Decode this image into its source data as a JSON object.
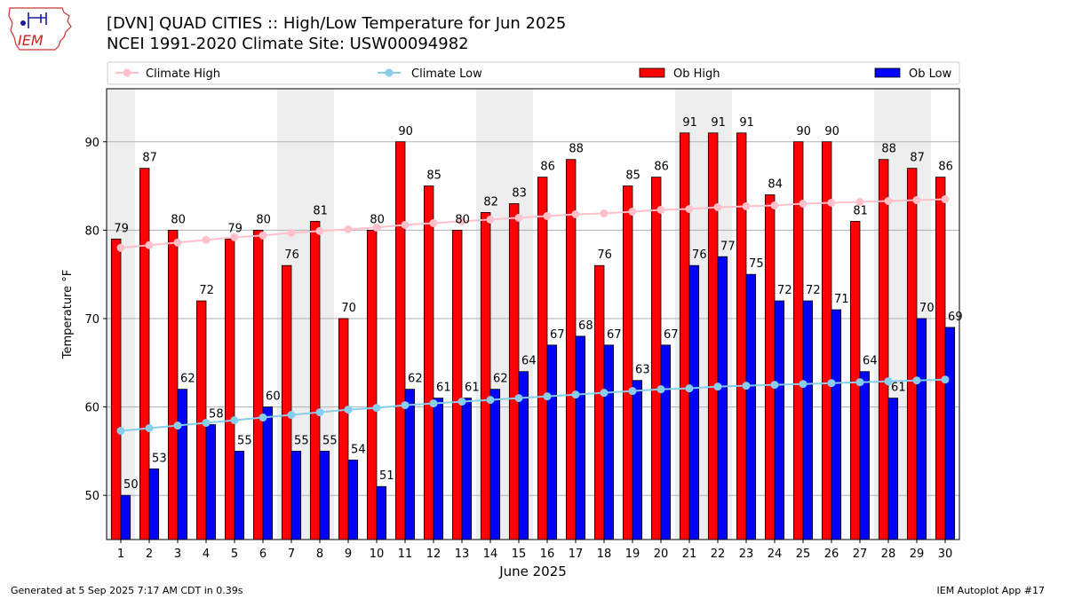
{
  "header": {
    "logo_text": "IEM",
    "title_line1": "[DVN] QUAD CITIES :: High/Low Temperature for Jun 2025",
    "title_line2": "NCEI 1991-2020 Climate Site: USW00094982"
  },
  "footer": {
    "generated": "Generated at 5 Sep 2025 7:17 AM CDT in 0.39s",
    "app": "IEM Autoplot App #17"
  },
  "colors": {
    "climate_high": "#ffc0cb",
    "climate_low": "#87ceeb",
    "ob_high": "#ff0000",
    "ob_low": "#0000ff",
    "weekend_shade": "#eeeeee",
    "grid": "#b0b0b0"
  },
  "chart_data": {
    "type": "bar",
    "title": "[DVN] QUAD CITIES :: High/Low Temperature for Jun 2025",
    "subtitle": "NCEI 1991-2020 Climate Site: USW00094982",
    "xlabel": "June 2025",
    "ylabel": "Temperature °F",
    "ylim": [
      45,
      96
    ],
    "yticks": [
      50,
      60,
      70,
      80,
      90
    ],
    "grid": "y",
    "legend_placement": "top",
    "legend": [
      "Climate High",
      "Climate Low",
      "Ob High",
      "Ob Low"
    ],
    "categories": [
      "1",
      "2",
      "3",
      "4",
      "5",
      "6",
      "7",
      "8",
      "9",
      "10",
      "11",
      "12",
      "13",
      "14",
      "15",
      "16",
      "17",
      "18",
      "19",
      "20",
      "21",
      "22",
      "23",
      "24",
      "25",
      "26",
      "27",
      "28",
      "29",
      "30"
    ],
    "shaded_days": [
      "1",
      "7",
      "8",
      "14",
      "15",
      "21",
      "22",
      "28",
      "29"
    ],
    "series": [
      {
        "name": "Ob High",
        "kind": "bar",
        "values": [
          79,
          87,
          80,
          72,
          79,
          80,
          76,
          81,
          70,
          80,
          90,
          85,
          80,
          82,
          83,
          86,
          88,
          76,
          85,
          86,
          91,
          91,
          91,
          84,
          90,
          90,
          81,
          88,
          87,
          86
        ]
      },
      {
        "name": "Ob Low",
        "kind": "bar",
        "values": [
          50,
          53,
          62,
          58,
          55,
          60,
          55,
          55,
          54,
          51,
          62,
          61,
          61,
          62,
          64,
          67,
          68,
          67,
          63,
          67,
          76,
          77,
          75,
          72,
          72,
          71,
          64,
          61,
          70,
          69
        ]
      },
      {
        "name": "Climate High",
        "kind": "line",
        "values": [
          78.0,
          78.3,
          78.6,
          78.9,
          79.2,
          79.4,
          79.7,
          79.9,
          80.1,
          80.3,
          80.6,
          80.8,
          81.0,
          81.2,
          81.4,
          81.6,
          81.8,
          81.9,
          82.1,
          82.3,
          82.4,
          82.6,
          82.7,
          82.8,
          83.0,
          83.1,
          83.2,
          83.3,
          83.4,
          83.5
        ]
      },
      {
        "name": "Climate Low",
        "kind": "line",
        "values": [
          57.3,
          57.6,
          57.9,
          58.2,
          58.5,
          58.8,
          59.1,
          59.4,
          59.7,
          59.9,
          60.2,
          60.4,
          60.6,
          60.8,
          61.0,
          61.2,
          61.4,
          61.6,
          61.8,
          62.0,
          62.1,
          62.3,
          62.4,
          62.5,
          62.6,
          62.7,
          62.8,
          62.9,
          63.0,
          63.1
        ]
      }
    ]
  }
}
